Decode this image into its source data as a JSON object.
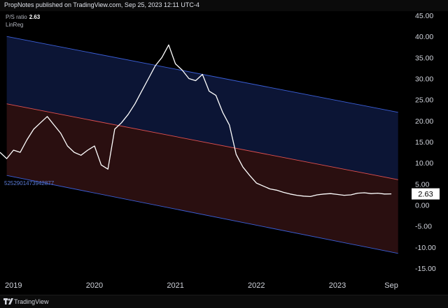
{
  "header": {
    "publish_info": "PropNotes published on TradingView.com, Sep 25, 2023 12:11 UTC-4"
  },
  "legend": {
    "series_name": "P/S ratio",
    "series_value": "2.63",
    "indicator_name": "LinReg"
  },
  "footer": {
    "brand": "TradingView"
  },
  "colors": {
    "background": "#000000",
    "upper_band_fill": "#0c1535",
    "lower_band_fill": "#2a0f10",
    "upper_line": "#3b5fd8",
    "middle_line": "#e05050",
    "lower_line": "#3b5fd8",
    "price_line": "#ffffff",
    "axis_text": "#d1d4dc",
    "left_label": "#5b7bd6"
  },
  "chart_data": {
    "type": "line",
    "series": [
      {
        "name": "P/S ratio",
        "x": [
          "2018-11",
          "2018-12",
          "2019-01",
          "2019-02",
          "2019-03",
          "2019-04",
          "2019-05",
          "2019-06",
          "2019-07",
          "2019-08",
          "2019-09",
          "2019-10",
          "2019-11",
          "2019-12",
          "2020-01",
          "2020-02",
          "2020-03",
          "2020-04",
          "2020-05",
          "2020-06",
          "2020-07",
          "2020-08",
          "2020-09",
          "2020-10",
          "2020-11",
          "2020-12",
          "2021-01",
          "2021-02",
          "2021-03",
          "2021-04",
          "2021-05",
          "2021-06",
          "2021-07",
          "2021-08",
          "2021-09",
          "2021-10",
          "2021-11",
          "2021-12",
          "2022-01",
          "2022-02",
          "2022-03",
          "2022-04",
          "2022-05",
          "2022-06",
          "2022-07",
          "2022-08",
          "2022-09",
          "2022-10",
          "2022-11",
          "2022-12",
          "2023-01",
          "2023-02",
          "2023-03",
          "2023-04",
          "2023-05",
          "2023-06",
          "2023-07",
          "2023-08",
          "2023-09"
        ],
        "y": [
          12.5,
          11.0,
          13.0,
          12.5,
          15.5,
          18.0,
          19.5,
          21.0,
          19.0,
          17.0,
          14.0,
          12.5,
          11.8,
          13.0,
          14.0,
          9.5,
          8.5,
          18.0,
          19.5,
          21.5,
          24.0,
          27.0,
          30.0,
          33.0,
          35.0,
          38.0,
          33.5,
          32.0,
          30.0,
          29.5,
          31.0,
          27.0,
          26.0,
          22.0,
          19.0,
          12.0,
          9.0,
          7.0,
          5.2,
          4.5,
          3.8,
          3.5,
          3.0,
          2.6,
          2.3,
          2.1,
          2.0,
          2.4,
          2.6,
          2.7,
          2.5,
          2.3,
          2.4,
          2.8,
          2.9,
          2.7,
          2.8,
          2.6,
          2.63
        ]
      }
    ],
    "linreg": {
      "upper": {
        "start": {
          "x": "2018-12",
          "y": 40.0
        },
        "end": {
          "x": "2023-10",
          "y": 22.0
        }
      },
      "middle": {
        "start": {
          "x": "2018-12",
          "y": 24.0
        },
        "end": {
          "x": "2023-10",
          "y": 6.0
        }
      },
      "lower": {
        "start": {
          "x": "2018-12",
          "y": 7.0
        },
        "end": {
          "x": "2023-10",
          "y": -11.5
        }
      }
    },
    "left_label": "5252901473942877",
    "last_value_label": "2.63",
    "y_ticks": [
      "45.00",
      "40.00",
      "35.00",
      "30.00",
      "25.00",
      "20.00",
      "15.00",
      "10.00",
      "5.00",
      "0.00",
      "-5.00",
      "-10.00",
      "-15.00"
    ],
    "y_tick_values": [
      45,
      40,
      35,
      30,
      25,
      20,
      15,
      10,
      5,
      0,
      -5,
      -10,
      -15
    ],
    "x_ticks": [
      {
        "label": "2019",
        "x": "2019-01"
      },
      {
        "label": "2020",
        "x": "2020-01"
      },
      {
        "label": "2021",
        "x": "2021-01"
      },
      {
        "label": "2022",
        "x": "2022-01"
      },
      {
        "label": "2023",
        "x": "2023-01"
      },
      {
        "label": "Sep",
        "x": "2023-09"
      }
    ],
    "ylim": [
      -17,
      46
    ],
    "xlim": [
      "2018-11",
      "2023-12"
    ],
    "grid": false
  }
}
